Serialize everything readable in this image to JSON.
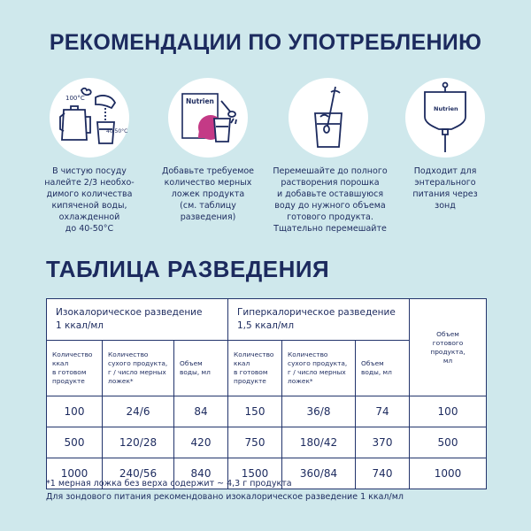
{
  "title": "РЕКОМЕНДАЦИИ ПО УПОТРЕБЛЕНИЮ",
  "steps": [
    {
      "text": "В чистую посуду\nналейте 2/3 необхо-\nдимого количества\nкипяченой воды,\nохлажденной\nдо 40-50°С",
      "icon": "kettle-water-icon",
      "labels": {
        "hot": "100°C",
        "warm": "40 50°C"
      }
    },
    {
      "text": "Добавьте требуемое\nколичество мерных\nложек продукта\n(см. таблицу\nразведения)",
      "icon": "powder-spoon-icon",
      "labels": {
        "brand": "Nutrien"
      }
    },
    {
      "text": "Перемешайте до полного\nрастворения порошка\nи добавьте оставшуюся\nводу до нужного объема\nготового продукта.\nТщательно перемешайте",
      "icon": "glass-stir-icon"
    },
    {
      "text": "Подходит для\nэнтерального\nпитания через\nзонд",
      "icon": "enteral-bag-icon",
      "labels": {
        "brand": "Nutrien"
      }
    }
  ],
  "table_title": "ТАБЛИЦА РАЗВЕДЕНИЯ",
  "table": {
    "iso_header": "Изокалорическое разведение\n1 ккал/мл",
    "hyper_header": "Гиперкалорическое разведение\n1,5 ккал/мл",
    "volume_header": "Объем\nготового\nпродукта,\nмл",
    "sub_headers": [
      "Количество\nккал\nв готовом\nпродукте",
      "Количество\nсухого продукта,\nг / число мерных\nложек*",
      "Объем\nводы, мл"
    ],
    "rows": [
      {
        "iso_kcal": "100",
        "iso_dry": "24/6",
        "iso_water": "84",
        "hyp_kcal": "150",
        "hyp_dry": "36/8",
        "hyp_water": "74",
        "volume": "100"
      },
      {
        "iso_kcal": "500",
        "iso_dry": "120/28",
        "iso_water": "420",
        "hyp_kcal": "750",
        "hyp_dry": "180/42",
        "hyp_water": "370",
        "volume": "500"
      },
      {
        "iso_kcal": "1000",
        "iso_dry": "240/56",
        "iso_water": "840",
        "hyp_kcal": "1500",
        "hyp_dry": "360/84",
        "hyp_water": "740",
        "volume": "1000"
      }
    ]
  },
  "footnotes": [
    "*1 мерная ложка без верха содержит ~ 4,3 г продукта",
    "Для зондового питания рекомендовано изокалорическое разведение 1 ккал/мл"
  ],
  "colors": {
    "background": "#cfe8ec",
    "navy": "#1c2a5e",
    "accent": "#c43a86"
  }
}
